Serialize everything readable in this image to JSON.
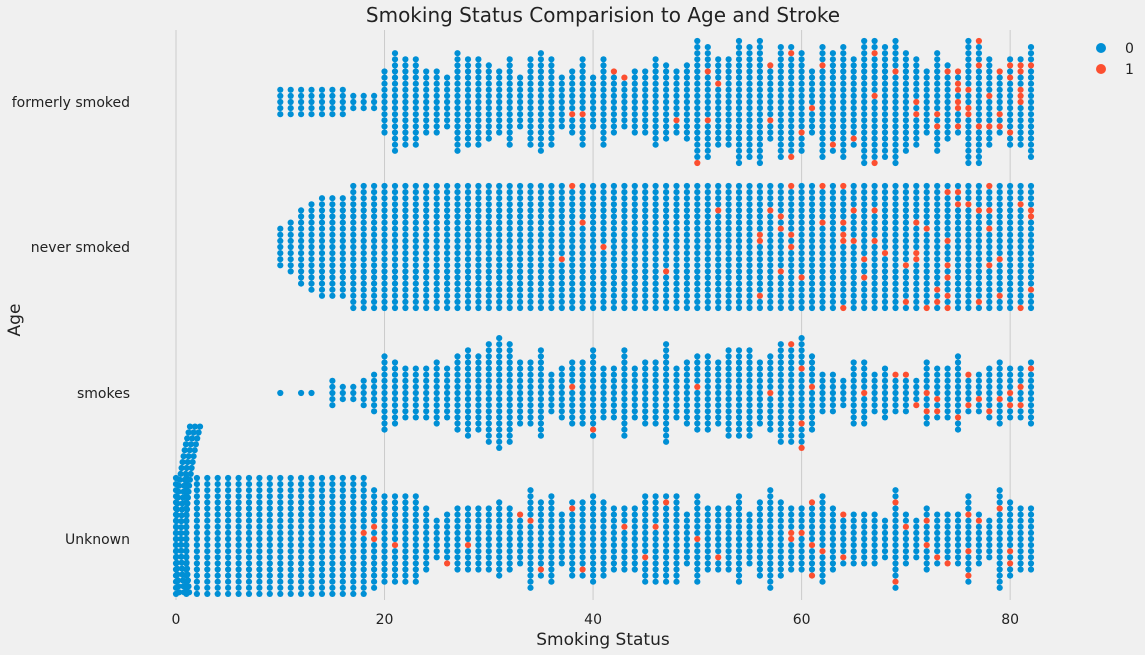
{
  "chart_data": {
    "type": "scatter",
    "subtype": "swarm",
    "title": "Smoking Status Comparision to Age and Stroke",
    "xlabel": "Smoking Status",
    "ylabel": "Age",
    "xlim": [
      -1,
      88
    ],
    "xticks": [
      0,
      20,
      40,
      60,
      80
    ],
    "xtick_labels": [
      "0",
      "20",
      "40",
      "60",
      "80"
    ],
    "categories": [
      "formerly smoked",
      "never smoked",
      "smokes",
      "Unknown"
    ],
    "grid": "x",
    "legend": {
      "placement": "top-right",
      "entries": [
        {
          "label": "0",
          "color": "#008fd5"
        },
        {
          "label": "1",
          "color": "#fc4f30"
        }
      ]
    },
    "series": [
      {
        "name": "0",
        "color": "#008fd5",
        "category_ranges": [
          {
            "category": "formerly smoked",
            "x_min": 10,
            "x_max": 82
          },
          {
            "category": "never smoked",
            "x_min": 10,
            "x_max": 82
          },
          {
            "category": "smokes",
            "x_min": 10,
            "x_max": 82
          },
          {
            "category": "Unknown",
            "x_min": 0.08,
            "x_max": 82
          }
        ]
      },
      {
        "name": "1",
        "color": "#fc4f30",
        "category_ranges": [
          {
            "category": "formerly smoked",
            "x_min": 38,
            "x_max": 82
          },
          {
            "category": "never smoked",
            "x_min": 37,
            "x_max": 82
          },
          {
            "category": "smokes",
            "x_min": 32,
            "x_max": 82
          },
          {
            "category": "Unknown",
            "x_min": 14,
            "x_max": 80
          }
        ]
      }
    ]
  }
}
